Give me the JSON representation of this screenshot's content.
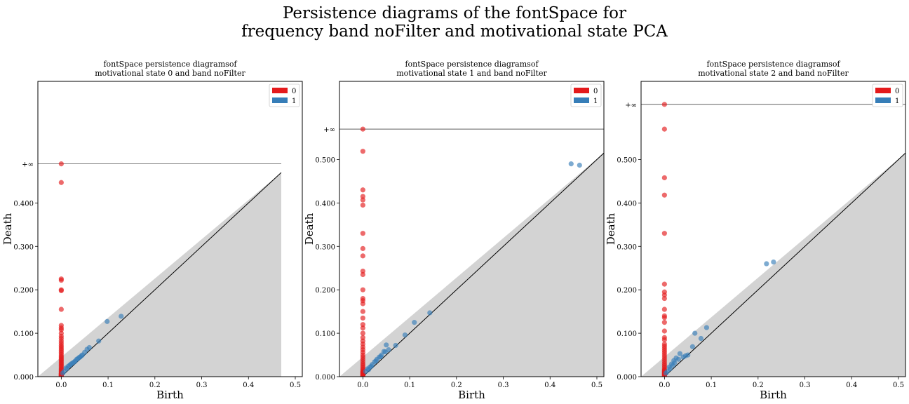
{
  "figure": {
    "suptitle_line1": "Persistence diagrams of the fontSpace for",
    "suptitle_line2": "frequency band noFilter and motivational state PCA"
  },
  "colors": {
    "h0": "#e41a1c",
    "h1": "#377eb8",
    "diag_fill": "#d3d3d3"
  },
  "chart_data": [
    {
      "type": "scatter",
      "title_line1": "fontSpace persistence diagramsof",
      "title_line2": "motivational state 0 and band noFilter",
      "xlabel": "Birth",
      "ylabel": "Death",
      "xlim": [
        -0.05,
        0.515
      ],
      "ylim": [
        0,
        0.68
      ],
      "x_ticks": [
        0,
        0.1,
        0.2,
        0.3,
        0.4,
        0.5
      ],
      "x_tick_labels": [
        "0.0",
        "0.1",
        "0.2",
        "0.3",
        "0.4",
        "0.5"
      ],
      "y_ticks": [
        0,
        0.1,
        0.2,
        0.3,
        0.4
      ],
      "y_tick_labels": [
        "0.000",
        "0.100",
        "0.200",
        "0.300",
        "0.400"
      ],
      "inf_value": 0.49,
      "inf_label": "+∞",
      "diag_max": 0.47,
      "legend": {
        "position": "top-right",
        "entries": [
          "0",
          "1"
        ]
      },
      "series": [
        {
          "name": "0",
          "x": [
            0,
            0,
            0,
            0,
            0,
            0,
            0,
            0,
            0,
            0,
            0,
            0,
            0,
            0,
            0,
            0,
            0,
            0,
            0,
            0,
            0,
            0,
            0,
            0,
            0,
            0,
            0,
            0,
            0,
            0,
            0,
            0,
            0,
            0,
            0,
            0,
            0,
            0,
            0,
            0,
            0,
            0,
            0,
            0,
            0
          ],
          "y": [
            0.49,
            0.447,
            0.225,
            0.222,
            0.2,
            0.198,
            0.155,
            0.118,
            0.112,
            0.108,
            0.1,
            0.093,
            0.088,
            0.082,
            0.077,
            0.072,
            0.068,
            0.064,
            0.06,
            0.056,
            0.052,
            0.048,
            0.045,
            0.042,
            0.039,
            0.036,
            0.033,
            0.03,
            0.027,
            0.024,
            0.021,
            0.018,
            0.016,
            0.014,
            0.012,
            0.01,
            0.008,
            0.006,
            0.005,
            0.004,
            0.003,
            0.002,
            0.001,
            0.003,
            0.007
          ]
        },
        {
          "name": "1",
          "x": [
            0.098,
            0.128,
            0.08,
            0.06,
            0.055,
            0.05,
            0.045,
            0.04,
            0.035,
            0.03,
            0.025,
            0.02,
            0.015,
            0.01,
            0.006,
            0.003,
            0.012,
            0.018,
            0.022,
            0.028,
            0.033,
            0.038,
            0.043
          ],
          "y": [
            0.127,
            0.139,
            0.082,
            0.067,
            0.063,
            0.056,
            0.05,
            0.045,
            0.041,
            0.036,
            0.032,
            0.028,
            0.024,
            0.02,
            0.012,
            0.008,
            0.018,
            0.026,
            0.03,
            0.034,
            0.04,
            0.044,
            0.048
          ]
        }
      ]
    },
    {
      "type": "scatter",
      "title_line1": "fontSpace persistence diagramsof",
      "title_line2": "motivational state 1 and band noFilter",
      "xlabel": "Birth",
      "ylabel": "Death",
      "xlim": [
        -0.05,
        0.515
      ],
      "ylim": [
        0,
        0.68
      ],
      "x_ticks": [
        0,
        0.1,
        0.2,
        0.3,
        0.4,
        0.5
      ],
      "x_tick_labels": [
        "0.0",
        "0.1",
        "0.2",
        "0.3",
        "0.4",
        "0.5"
      ],
      "y_ticks": [
        0,
        0.1,
        0.2,
        0.3,
        0.4,
        0.5
      ],
      "y_tick_labels": [
        "0.000",
        "0.100",
        "0.200",
        "0.300",
        "0.400",
        "0.500"
      ],
      "inf_value": 0.57,
      "inf_label": "+∞",
      "diag_max": 0.515,
      "legend": {
        "position": "top-right",
        "entries": [
          "0",
          "1"
        ]
      },
      "series": [
        {
          "name": "0",
          "x": [
            0,
            0,
            0,
            0,
            0,
            0,
            0,
            0,
            0,
            0,
            0,
            0,
            0,
            0,
            0,
            0,
            0,
            0,
            0,
            0,
            0,
            0,
            0,
            0,
            0,
            0,
            0,
            0,
            0,
            0,
            0,
            0,
            0,
            0,
            0,
            0,
            0,
            0,
            0,
            0,
            0,
            0,
            0,
            0,
            0,
            0,
            0
          ],
          "y": [
            0.57,
            0.519,
            0.43,
            0.415,
            0.407,
            0.395,
            0.33,
            0.295,
            0.278,
            0.243,
            0.235,
            0.2,
            0.18,
            0.175,
            0.168,
            0.15,
            0.135,
            0.12,
            0.112,
            0.1,
            0.09,
            0.082,
            0.075,
            0.068,
            0.062,
            0.056,
            0.05,
            0.045,
            0.04,
            0.035,
            0.03,
            0.026,
            0.022,
            0.018,
            0.015,
            0.012,
            0.01,
            0.008,
            0.006,
            0.005,
            0.004,
            0.003,
            0.002,
            0.001,
            0.007,
            0.009,
            0.011
          ]
        },
        {
          "name": "1",
          "x": [
            0.445,
            0.463,
            0.143,
            0.11,
            0.09,
            0.07,
            0.055,
            0.05,
            0.045,
            0.04,
            0.035,
            0.03,
            0.025,
            0.02,
            0.015,
            0.01,
            0.006,
            0.012,
            0.018,
            0.028,
            0.038,
            0.048
          ],
          "y": [
            0.49,
            0.487,
            0.147,
            0.125,
            0.096,
            0.072,
            0.062,
            0.073,
            0.058,
            0.05,
            0.045,
            0.04,
            0.034,
            0.028,
            0.022,
            0.018,
            0.012,
            0.016,
            0.024,
            0.036,
            0.046,
            0.057
          ]
        }
      ]
    },
    {
      "type": "scatter",
      "title_line1": "fontSpace persistence diagramsof",
      "title_line2": "motivational state 2 and band noFilter",
      "xlabel": "Birth",
      "ylabel": "Death",
      "xlim": [
        -0.05,
        0.515
      ],
      "ylim": [
        0,
        0.68
      ],
      "x_ticks": [
        0,
        0.1,
        0.2,
        0.3,
        0.4,
        0.5
      ],
      "x_tick_labels": [
        "0.0",
        "0.1",
        "0.2",
        "0.3",
        "0.4",
        "0.5"
      ],
      "y_ticks": [
        0,
        0.1,
        0.2,
        0.3,
        0.4,
        0.5
      ],
      "y_tick_labels": [
        "0.000",
        "0.100",
        "0.200",
        "0.300",
        "0.400",
        "0.500"
      ],
      "inf_value": 0.627,
      "inf_label": "+∞",
      "diag_max": 0.515,
      "legend": {
        "position": "top-right",
        "entries": [
          "0",
          "1"
        ]
      },
      "series": [
        {
          "name": "0",
          "x": [
            0,
            0,
            0,
            0,
            0,
            0,
            0,
            0,
            0,
            0,
            0,
            0,
            0,
            0,
            0,
            0,
            0,
            0,
            0,
            0,
            0,
            0,
            0,
            0,
            0,
            0,
            0,
            0,
            0,
            0,
            0,
            0,
            0,
            0,
            0,
            0,
            0,
            0,
            0,
            0,
            0,
            0,
            0
          ],
          "y": [
            0.627,
            0.57,
            0.458,
            0.418,
            0.33,
            0.213,
            0.195,
            0.188,
            0.18,
            0.155,
            0.14,
            0.136,
            0.125,
            0.105,
            0.09,
            0.085,
            0.075,
            0.07,
            0.065,
            0.06,
            0.055,
            0.05,
            0.045,
            0.04,
            0.035,
            0.03,
            0.026,
            0.022,
            0.018,
            0.015,
            0.012,
            0.01,
            0.008,
            0.006,
            0.005,
            0.004,
            0.003,
            0.002,
            0.001,
            0.007,
            0.009,
            0.011,
            0.014
          ]
        },
        {
          "name": "1",
          "x": [
            0.218,
            0.233,
            0.09,
            0.078,
            0.065,
            0.06,
            0.05,
            0.04,
            0.033,
            0.025,
            0.02,
            0.015,
            0.01,
            0.006,
            0.003,
            0.012,
            0.018,
            0.022,
            0.03,
            0.045
          ],
          "y": [
            0.26,
            0.264,
            0.113,
            0.088,
            0.1,
            0.069,
            0.05,
            0.045,
            0.053,
            0.043,
            0.037,
            0.029,
            0.022,
            0.012,
            0.008,
            0.018,
            0.026,
            0.032,
            0.04,
            0.048
          ]
        }
      ]
    }
  ]
}
